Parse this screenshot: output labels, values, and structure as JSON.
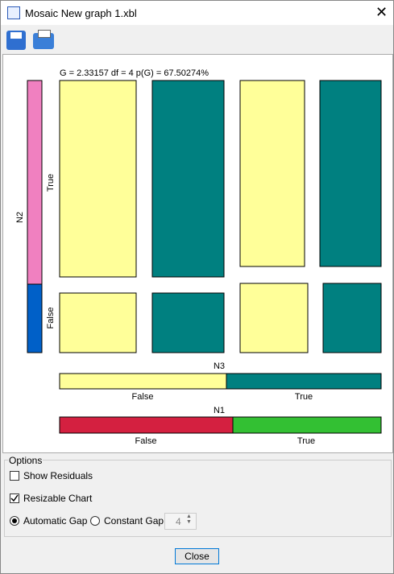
{
  "window": {
    "title": "Mosaic New graph 1.xbl"
  },
  "chart": {
    "statistic": "G = 2.33157 df = 4 p(G) = 67.50274%",
    "row_axis": {
      "label": "N2",
      "categories": [
        "True",
        "False"
      ]
    },
    "n3": {
      "label": "N3",
      "categories": [
        "False",
        "True"
      ]
    },
    "n1": {
      "label": "N1",
      "categories": [
        "False",
        "True"
      ]
    }
  },
  "options": {
    "title": "Options",
    "show_residuals": {
      "label": "Show Residuals",
      "checked": false
    },
    "resizable_chart": {
      "label": "Resizable Chart",
      "checked": true
    },
    "automatic_gap": {
      "label": "Automatic Gap",
      "selected": true
    },
    "constant_gap": {
      "label": "Constant Gap",
      "selected": false
    },
    "gap_value": "4"
  },
  "close_button": "Close"
}
